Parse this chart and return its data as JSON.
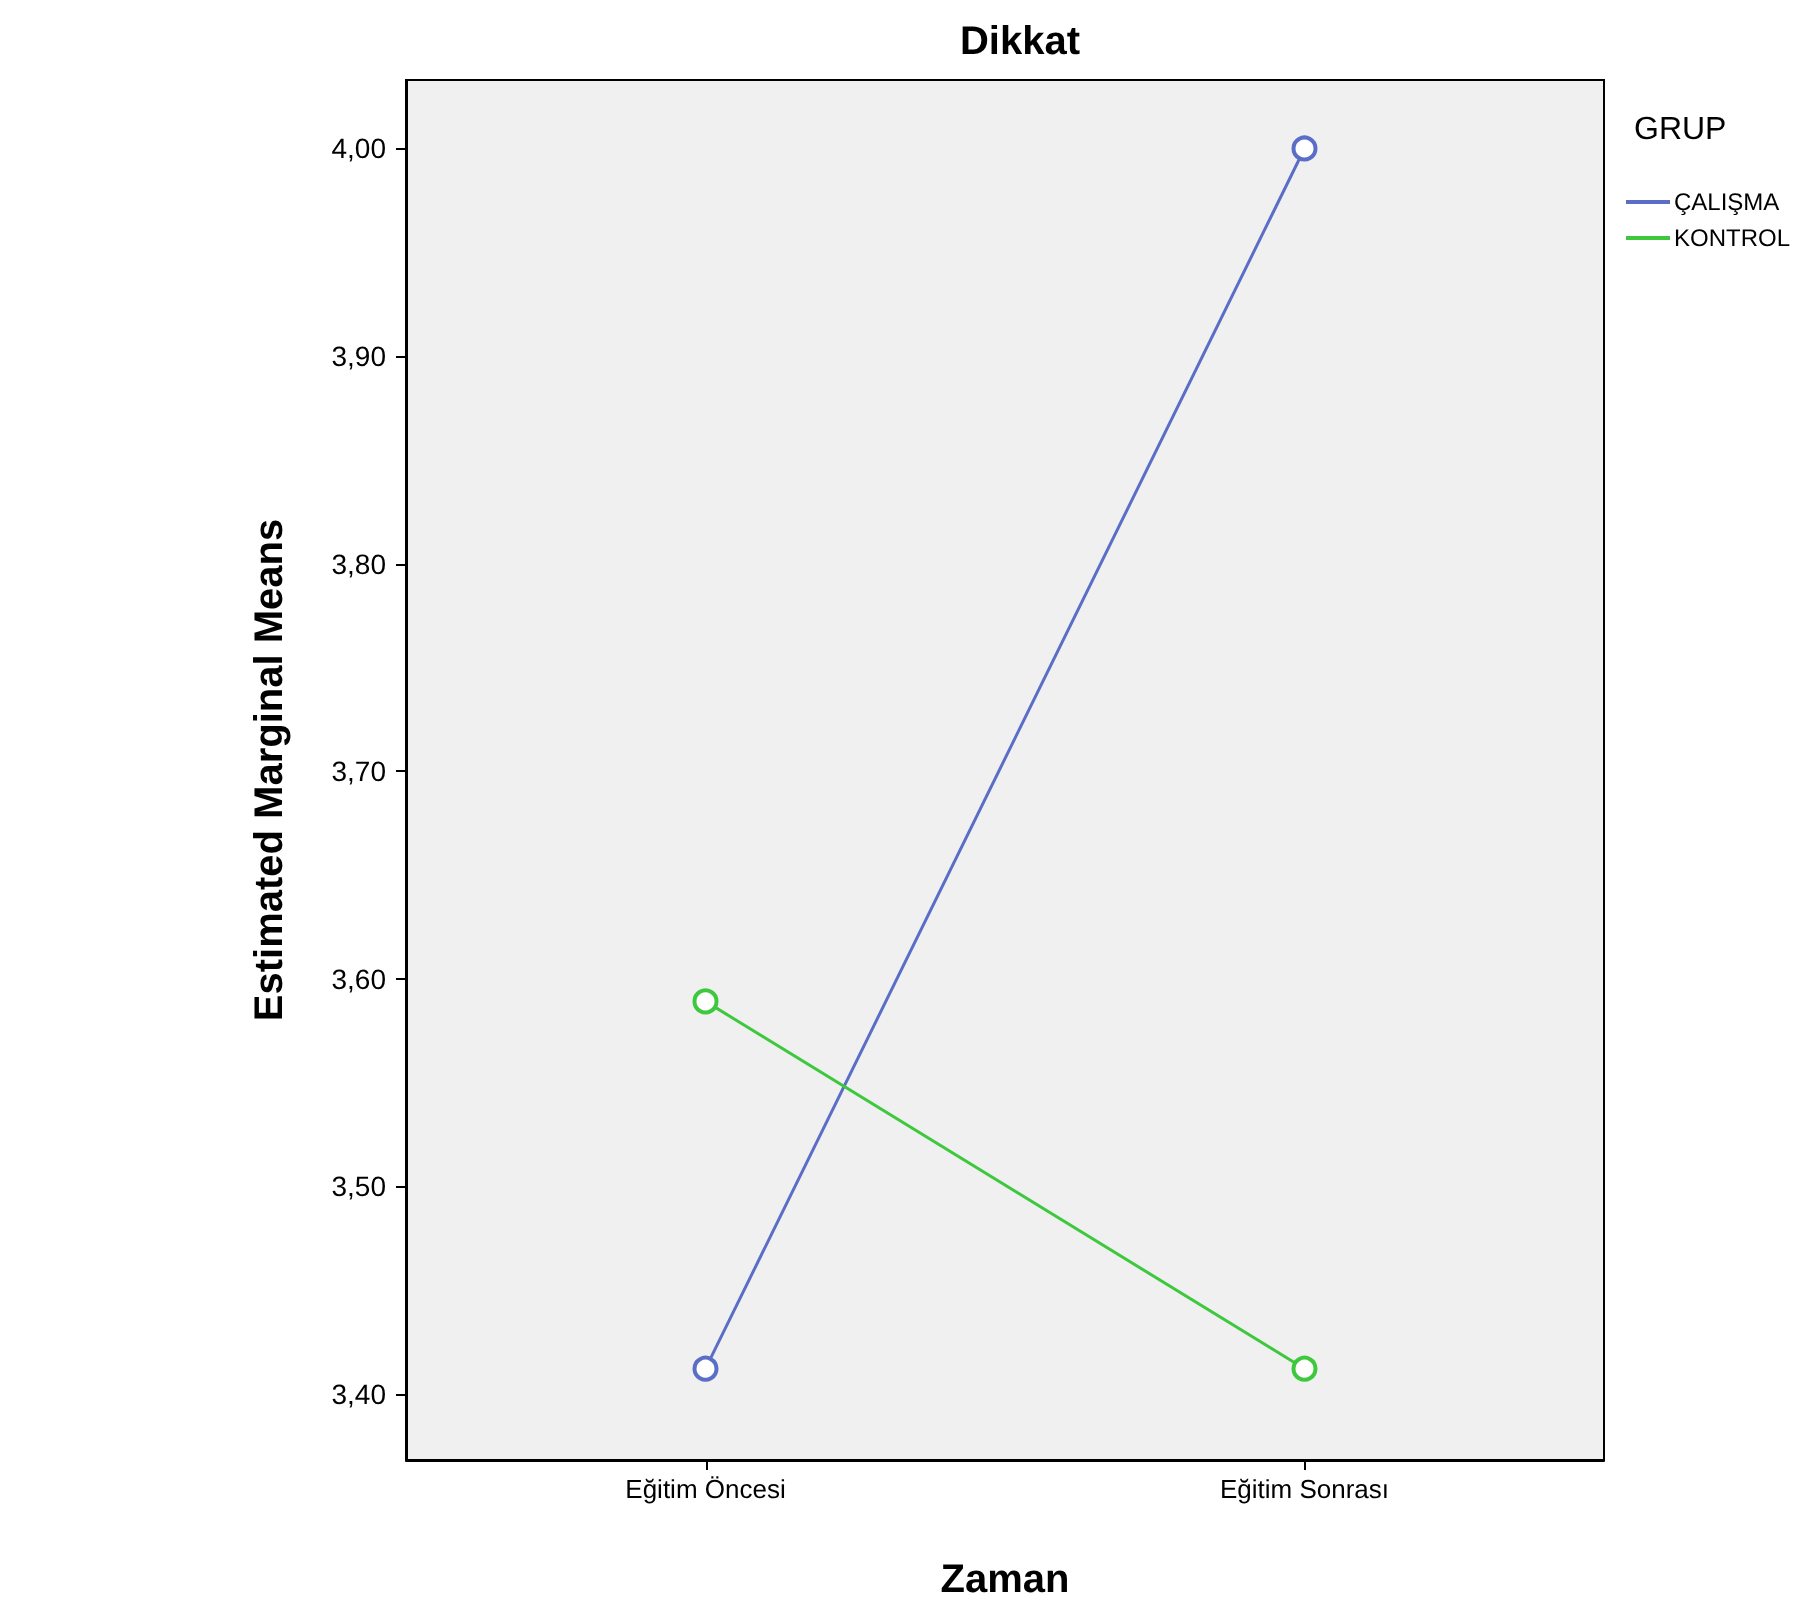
{
  "chart_data": {
    "type": "line",
    "title": "Dikkat",
    "xlabel": "Zaman",
    "ylabel": "Estimated Marginal Means",
    "legend_title": "GRUP",
    "categories": [
      "Eğitim Öncesi",
      "Eğitim Sonrası"
    ],
    "series": [
      {
        "name": "ÇALIŞMA",
        "color": "#5a6ec8",
        "values": [
          3.412,
          4.0
        ]
      },
      {
        "name": "KONTROL",
        "color": "#3ec83e",
        "values": [
          3.589,
          3.412
        ]
      }
    ],
    "ylim": [
      3.368,
      4.033
    ],
    "yticks": [
      {
        "value": 3.4,
        "label": "3,40"
      },
      {
        "value": 3.5,
        "label": "3,50"
      },
      {
        "value": 3.6,
        "label": "3,60"
      },
      {
        "value": 3.7,
        "label": "3,70"
      },
      {
        "value": 3.8,
        "label": "3,80"
      },
      {
        "value": 3.9,
        "label": "3,90"
      },
      {
        "value": 4.0,
        "label": "4,00"
      }
    ],
    "grid": false,
    "legend": "right",
    "marker": "circle",
    "line_style": "solid"
  }
}
